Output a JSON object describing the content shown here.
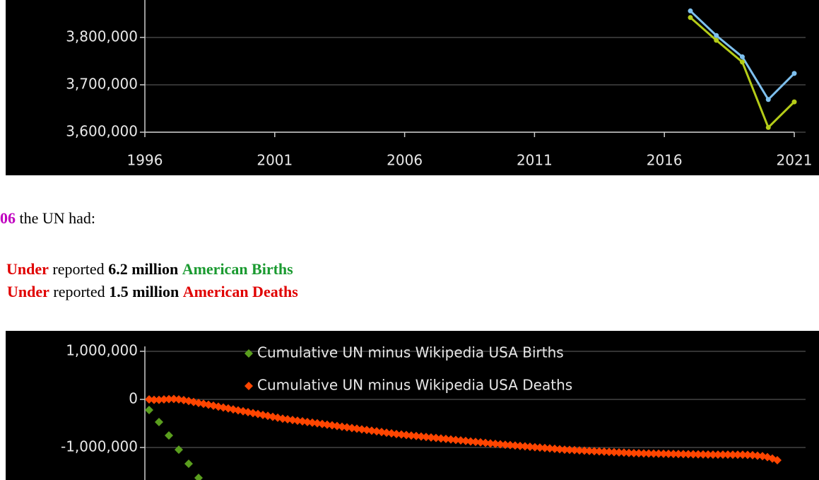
{
  "chart_data": [
    {
      "type": "line",
      "x": [
        2017,
        2018,
        2019,
        2020,
        2021
      ],
      "series": [
        {
          "color": "#7ec0ee",
          "values": [
            3856000,
            3804000,
            3759000,
            3669000,
            3724000
          ]
        },
        {
          "color": "#b5cc18",
          "values": [
            3842000,
            3794000,
            3748000,
            3610000,
            3664000
          ]
        }
      ],
      "xlim": [
        1996,
        2021
      ],
      "xticks": [
        1996,
        2001,
        2006,
        2011,
        2016,
        2021
      ],
      "ylim": [
        3600000,
        3879000
      ],
      "yticks": [
        {
          "value": 3600000,
          "label": "3,600,000"
        },
        {
          "value": 3700000,
          "label": "3,700,000"
        },
        {
          "value": 3800000,
          "label": "3,800,000"
        }
      ],
      "grid": true
    },
    {
      "type": "scatter",
      "legend": "top",
      "series": [
        {
          "name": "Cumulative UN minus Wikipedia USA Births",
          "color": "#5a9e1e",
          "values": [
            -220000,
            null,
            -470000,
            null,
            -750000,
            null,
            -1045000,
            null,
            -1338000,
            null,
            -1632000
          ]
        },
        {
          "name": "Cumulative UN minus Wikipedia USA Deaths",
          "color": "#ff4500",
          "values": [
            0,
            -10000,
            -10000,
            0,
            5000,
            10000,
            0,
            -15000,
            -34000,
            -54000,
            -73000,
            -92000,
            -111000,
            -131000,
            -150000,
            -169000,
            -188000,
            -208000,
            -227000,
            -246000,
            -265000,
            -285000,
            -304000,
            -323000,
            -342000,
            -362000,
            -381000,
            -400000,
            -414000,
            -428000,
            -442000,
            -456000,
            -470000,
            -483000,
            -497000,
            -511000,
            -525000,
            -539000,
            -553000,
            -567000,
            -581000,
            -595000,
            -609000,
            -623000,
            -636000,
            -650000,
            -664000,
            -678000,
            -692000,
            -706000,
            -720000,
            -730000,
            -740000,
            -751000,
            -761000,
            -771000,
            -781000,
            -792000,
            -802000,
            -812000,
            -822000,
            -833000,
            -843000,
            -853000,
            -863000,
            -874000,
            -884000,
            -894000,
            -904000,
            -915000,
            -925000,
            -934000,
            -942000,
            -951000,
            -959000,
            -968000,
            -976000,
            -985000,
            -994000,
            -1002000,
            -1011000,
            -1019000,
            -1028000,
            -1036000,
            -1045000,
            -1050000,
            -1055000,
            -1061000,
            -1066000,
            -1071000,
            -1076000,
            -1081000,
            -1087000,
            -1092000,
            -1097000,
            -1102000,
            -1107000,
            -1113000,
            -1118000,
            -1120000,
            -1122000,
            -1124000,
            -1126000,
            -1128000,
            -1130000,
            -1132000,
            -1133000,
            -1135000,
            -1137000,
            -1139000,
            -1141000,
            -1143000,
            -1145000,
            -1147000,
            -1148000,
            -1148000,
            -1149000,
            -1149000,
            -1150000,
            -1150000,
            -1150000,
            -1155000,
            -1160000,
            -1170000,
            -1180000,
            -1200000,
            -1230000,
            -1265000
          ]
        }
      ],
      "ylim": [
        -1676000,
        1426000
      ],
      "yticks": [
        {
          "value": -1000000,
          "label": "-1,000,000"
        },
        0,
        {
          "value": 1000000,
          "label": "1,000,000"
        }
      ],
      "grid": true
    }
  ],
  "text": {
    "intro": [
      "06",
      "the UN had:"
    ],
    "items": [
      [
        "Under",
        "reported",
        "6.2 million",
        "American Births"
      ],
      [
        "Under",
        "reported",
        "1.5 million",
        "American Deaths"
      ]
    ]
  }
}
